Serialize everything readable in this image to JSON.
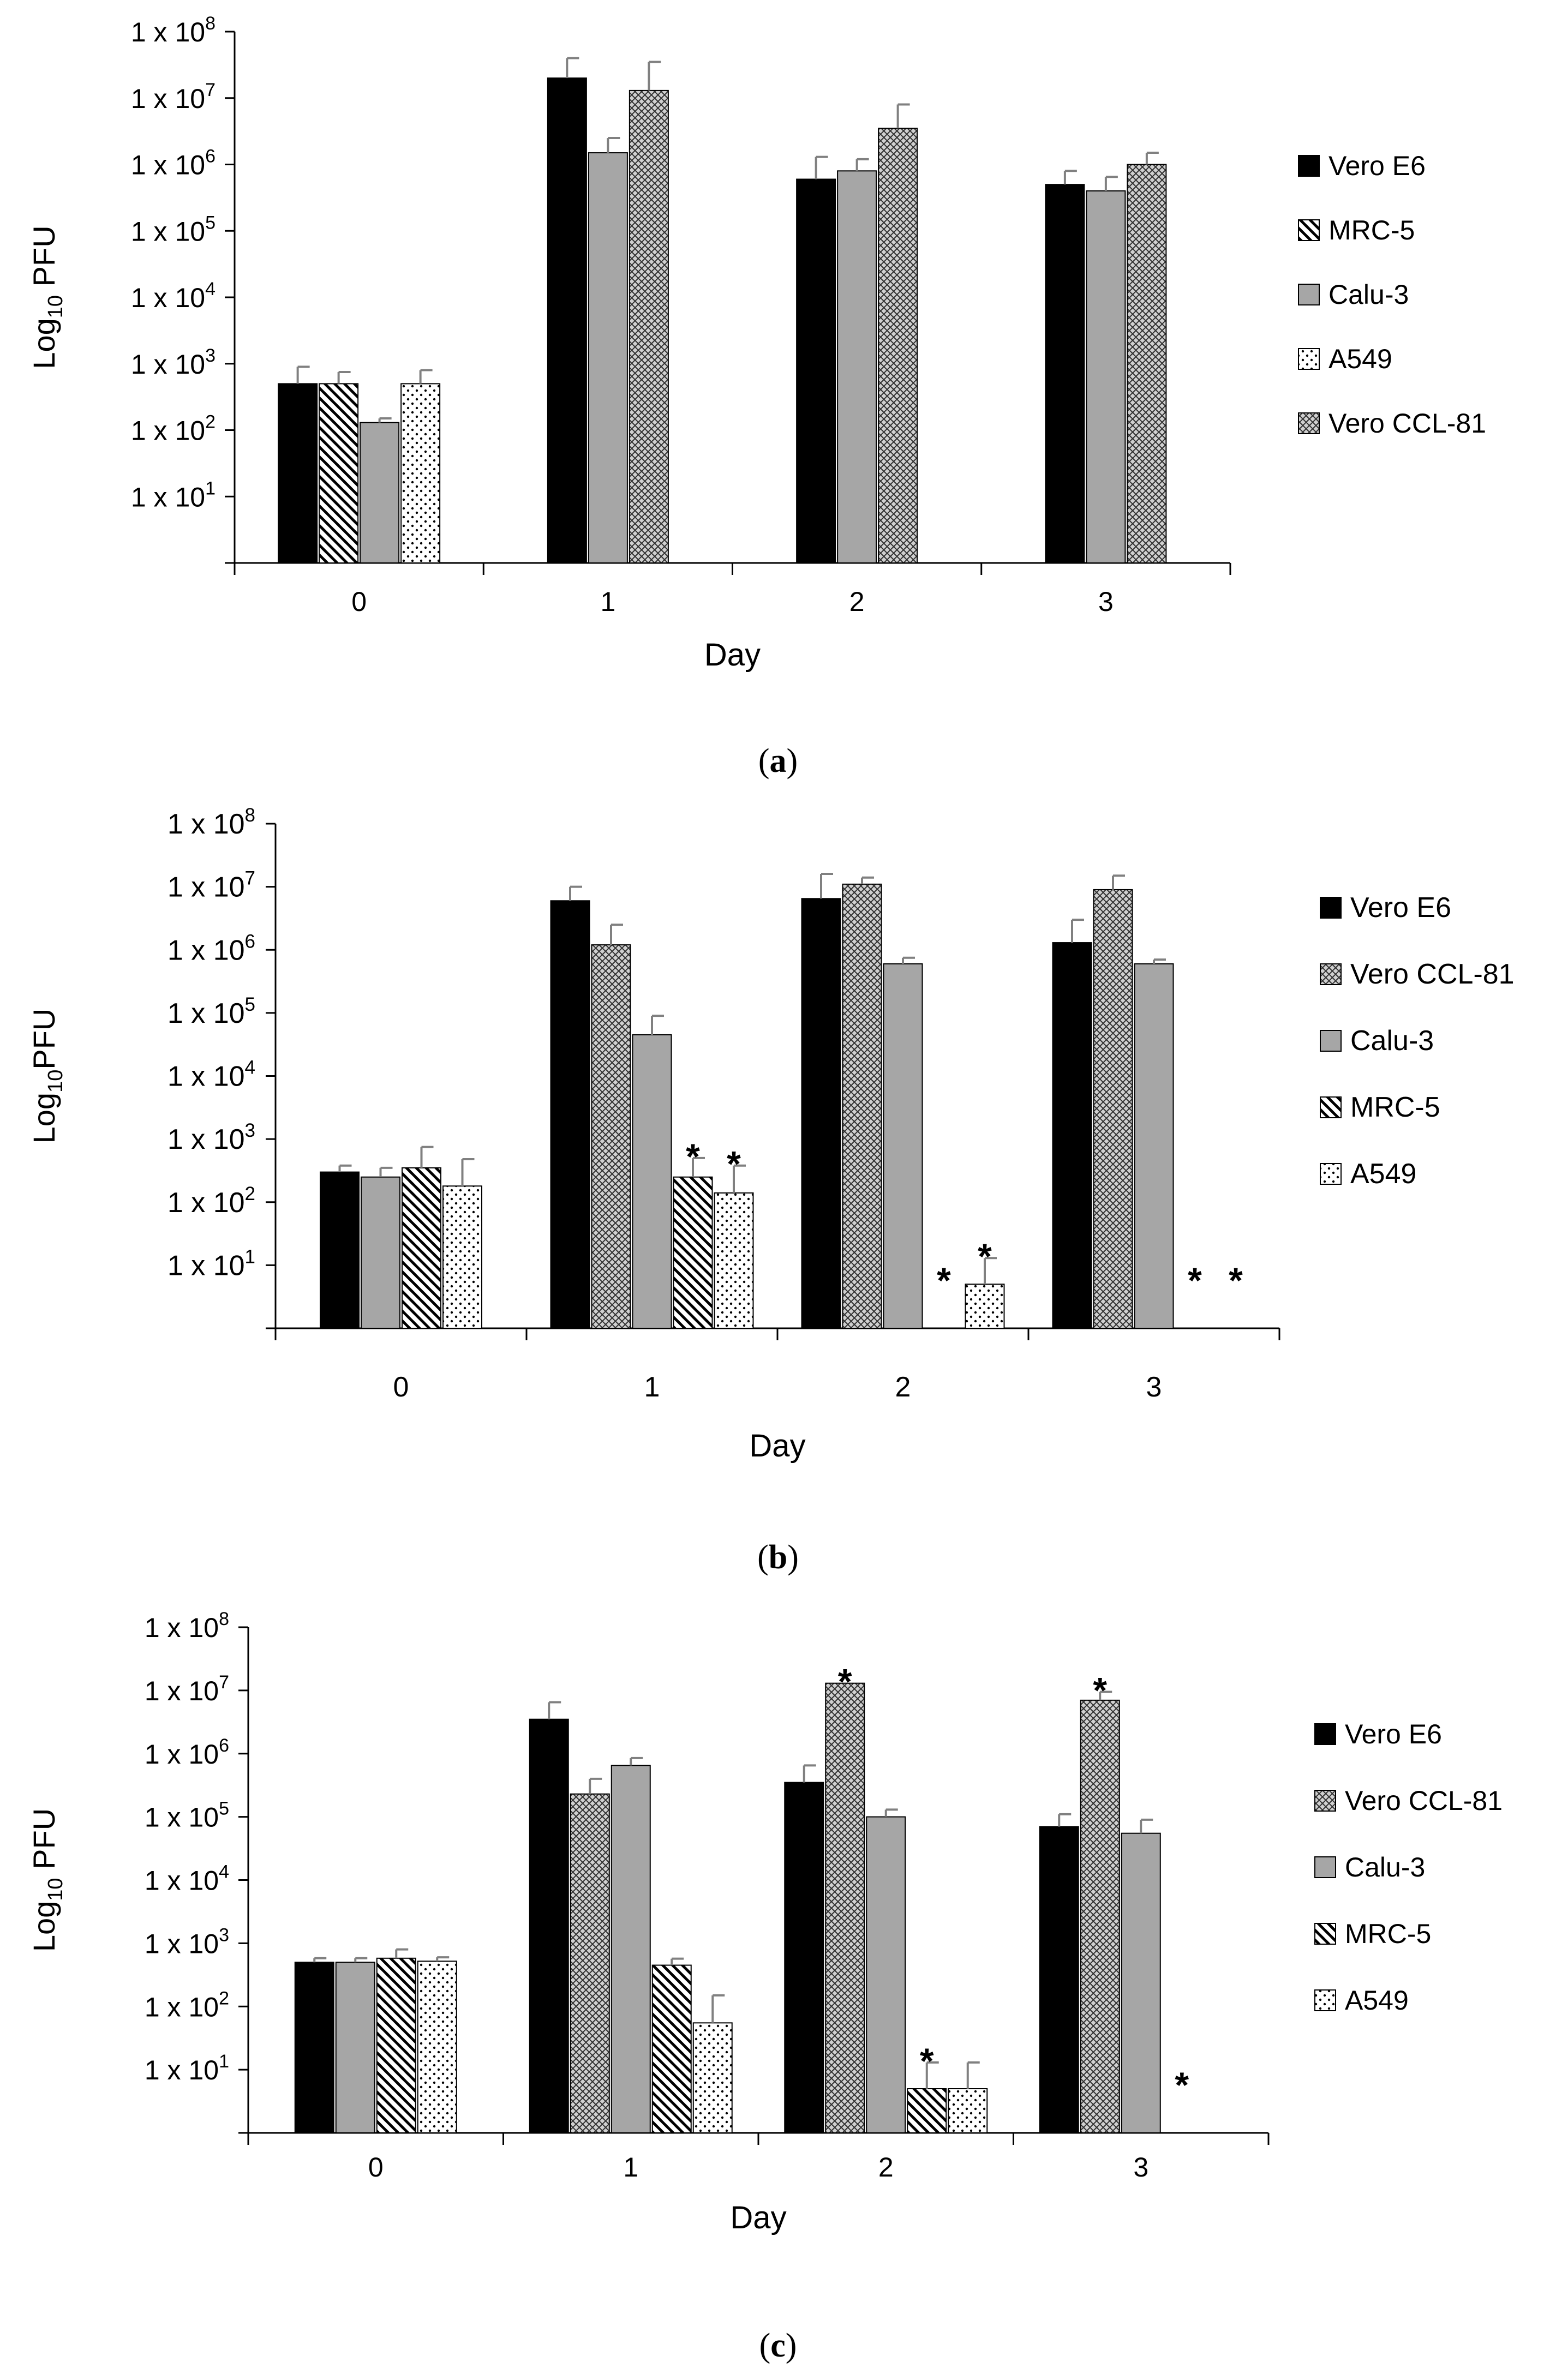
{
  "colors": {
    "vero_e6": "#000000",
    "calu3": "#a6a6a6",
    "axis": "#000000",
    "error_bar": "#808080"
  },
  "chart_data": [
    {
      "panel": "a",
      "caption_label": "a",
      "type": "bar",
      "yscale": "log",
      "ylim": [
        1,
        100000000
      ],
      "ylabel_main": "Log",
      "ylabel_sub": "10",
      "ylabel_tail": " PFU",
      "xlabel": "Day",
      "categories": [
        "0",
        "1",
        "2",
        "3"
      ],
      "yticks": [
        {
          "value": 10,
          "label_base": "1 x 10",
          "label_exp": "1"
        },
        {
          "value": 100,
          "label_base": "1 x 10",
          "label_exp": "2"
        },
        {
          "value": 1000,
          "label_base": "1 x 10",
          "label_exp": "3"
        },
        {
          "value": 10000,
          "label_base": "1 x 10",
          "label_exp": "4"
        },
        {
          "value": 100000,
          "label_base": "1 x 10",
          "label_exp": "5"
        },
        {
          "value": 1000000,
          "label_base": "1 x 10",
          "label_exp": "6"
        },
        {
          "value": 10000000,
          "label_base": "1 x 10",
          "label_exp": "7"
        },
        {
          "value": 100000000,
          "label_base": "1 x 10",
          "label_exp": "8"
        }
      ],
      "series": [
        {
          "name": "Vero E6",
          "pattern": "solid",
          "values": [
            500,
            20000000,
            600000,
            500000
          ],
          "errors": [
            900,
            40000000,
            1300000,
            800000
          ],
          "stars": [
            false,
            false,
            false,
            false
          ]
        },
        {
          "name": "MRC-5",
          "pattern": "diagonal",
          "values": [
            500,
            null,
            null,
            null
          ],
          "errors": [
            750,
            null,
            null,
            null
          ],
          "stars": [
            false,
            false,
            false,
            false
          ]
        },
        {
          "name": "Calu-3",
          "pattern": "gray",
          "values": [
            130,
            1500000,
            800000,
            400000
          ],
          "errors": [
            150,
            2500000,
            1200000,
            650000
          ],
          "stars": [
            false,
            false,
            false,
            false
          ]
        },
        {
          "name": "A549",
          "pattern": "dots",
          "values": [
            500,
            null,
            null,
            null
          ],
          "errors": [
            800,
            null,
            null,
            null
          ],
          "stars": [
            false,
            false,
            false,
            false
          ]
        },
        {
          "name": "Vero CCL-81",
          "pattern": "checker",
          "values": [
            null,
            13000000,
            3500000,
            1000000
          ],
          "errors": [
            null,
            35000000,
            8000000,
            1500000
          ],
          "stars": [
            false,
            false,
            false,
            false
          ]
        }
      ],
      "groups": [
        [
          "Vero E6",
          "MRC-5",
          "Calu-3",
          "A549"
        ],
        [
          "Vero E6",
          "Calu-3",
          "Vero CCL-81"
        ],
        [
          "Vero E6",
          "Calu-3",
          "Vero CCL-81"
        ],
        [
          "Vero E6",
          "Calu-3",
          "Vero CCL-81"
        ]
      ],
      "legend": [
        "Vero E6",
        "MRC-5",
        "Calu-3",
        "A549",
        "Vero CCL-81"
      ]
    },
    {
      "panel": "b",
      "caption_label": "b",
      "type": "bar",
      "yscale": "log",
      "ylim": [
        1,
        100000000
      ],
      "ylabel_main": "Log",
      "ylabel_sub": "10",
      "ylabel_tail": "PFU",
      "xlabel": "Day",
      "categories": [
        "0",
        "1",
        "2",
        "3"
      ],
      "yticks": [
        {
          "value": 10,
          "label_base": "1 x 10",
          "label_exp": "1"
        },
        {
          "value": 100,
          "label_base": "1 x 10",
          "label_exp": "2"
        },
        {
          "value": 1000,
          "label_base": "1 x 10",
          "label_exp": "3"
        },
        {
          "value": 10000,
          "label_base": "1 x 10",
          "label_exp": "4"
        },
        {
          "value": 100000,
          "label_base": "1 x 10",
          "label_exp": "5"
        },
        {
          "value": 1000000,
          "label_base": "1 x 10",
          "label_exp": "6"
        },
        {
          "value": 10000000,
          "label_base": "1 x 10",
          "label_exp": "7"
        },
        {
          "value": 100000000,
          "label_base": "1 x 10",
          "label_exp": "8"
        }
      ],
      "series": [
        {
          "name": "Vero E6",
          "pattern": "solid",
          "values": [
            300,
            6000000,
            6500000,
            1300000
          ],
          "errors": [
            380,
            10000000,
            16000000,
            3000000
          ],
          "stars": [
            false,
            false,
            false,
            false
          ]
        },
        {
          "name": "Vero CCL-81",
          "pattern": "checker",
          "values": [
            null,
            1200000,
            11000000,
            9000000
          ],
          "errors": [
            null,
            2500000,
            14000000,
            15000000
          ],
          "stars": [
            false,
            false,
            false,
            false
          ]
        },
        {
          "name": "Calu-3",
          "pattern": "gray",
          "values": [
            250,
            45000,
            600000,
            600000
          ],
          "errors": [
            350,
            90000,
            750000,
            700000
          ],
          "stars": [
            false,
            false,
            false,
            false
          ]
        },
        {
          "name": "MRC-5",
          "pattern": "diagonal",
          "values": [
            350,
            250,
            null,
            null
          ],
          "errors": [
            750,
            500,
            null,
            null
          ],
          "stars": [
            false,
            true,
            true,
            true
          ]
        },
        {
          "name": "A549",
          "pattern": "dots",
          "values": [
            180,
            140,
            5,
            null
          ],
          "errors": [
            480,
            380,
            13,
            null
          ],
          "stars": [
            false,
            true,
            true,
            true
          ]
        }
      ],
      "groups": [
        [
          "Vero E6",
          "Calu-3",
          "MRC-5",
          "A549"
        ],
        [
          "Vero E6",
          "Vero CCL-81",
          "Calu-3",
          "MRC-5",
          "A549"
        ],
        [
          "Vero E6",
          "Vero CCL-81",
          "Calu-3",
          "MRC-5",
          "A549"
        ],
        [
          "Vero E6",
          "Vero CCL-81",
          "Calu-3",
          "MRC-5",
          "A549"
        ]
      ],
      "legend": [
        "Vero E6",
        "Vero CCL-81",
        "Calu-3",
        "MRC-5",
        "A549"
      ]
    },
    {
      "panel": "c",
      "caption_label": "c",
      "type": "bar",
      "yscale": "log",
      "ylim": [
        1,
        100000000
      ],
      "ylabel_main": "Log",
      "ylabel_sub": "10",
      "ylabel_tail": " PFU",
      "xlabel": "Day",
      "categories": [
        "0",
        "1",
        "2",
        "3"
      ],
      "yticks": [
        {
          "value": 10,
          "label_base": "1 x 10",
          "label_exp": "1"
        },
        {
          "value": 100,
          "label_base": "1 x 10",
          "label_exp": "2"
        },
        {
          "value": 1000,
          "label_base": "1 x 10",
          "label_exp": "3"
        },
        {
          "value": 10000,
          "label_base": "1 x 10",
          "label_exp": "4"
        },
        {
          "value": 100000,
          "label_base": "1 x 10",
          "label_exp": "5"
        },
        {
          "value": 1000000,
          "label_base": "1 x 10",
          "label_exp": "6"
        },
        {
          "value": 10000000,
          "label_base": "1 x 10",
          "label_exp": "7"
        },
        {
          "value": 100000000,
          "label_base": "1 x 10",
          "label_exp": "8"
        }
      ],
      "series": [
        {
          "name": "Vero E6",
          "pattern": "solid",
          "values": [
            500,
            3500000,
            350000,
            70000
          ],
          "errors": [
            580,
            6500000,
            650000,
            110000
          ],
          "stars": [
            false,
            false,
            false,
            false
          ]
        },
        {
          "name": "Vero CCL-81",
          "pattern": "checker",
          "values": [
            null,
            230000,
            13000000,
            7000000
          ],
          "errors": [
            null,
            400000,
            13000000,
            9500000
          ],
          "stars": [
            false,
            false,
            true,
            true
          ]
        },
        {
          "name": "Calu-3",
          "pattern": "gray",
          "values": [
            500,
            650000,
            100000,
            55000
          ],
          "errors": [
            580,
            850000,
            130000,
            90000
          ],
          "stars": [
            false,
            false,
            false,
            false
          ]
        },
        {
          "name": "MRC-5",
          "pattern": "diagonal",
          "values": [
            580,
            450,
            5,
            null
          ],
          "errors": [
            800,
            570,
            13,
            null
          ],
          "stars": [
            false,
            false,
            true,
            true
          ]
        },
        {
          "name": "A549",
          "pattern": "dots",
          "values": [
            520,
            55,
            5,
            null
          ],
          "errors": [
            600,
            150,
            13,
            null
          ],
          "stars": [
            false,
            false,
            false,
            false
          ]
        }
      ],
      "groups": [
        [
          "Vero E6",
          "Calu-3",
          "MRC-5",
          "A549"
        ],
        [
          "Vero E6",
          "Vero CCL-81",
          "Calu-3",
          "MRC-5",
          "A549"
        ],
        [
          "Vero E6",
          "Vero CCL-81",
          "Calu-3",
          "MRC-5",
          "A549"
        ],
        [
          "Vero E6",
          "Vero CCL-81",
          "Calu-3",
          "MRC-5",
          "A549"
        ]
      ],
      "legend": [
        "Vero E6",
        "Vero CCL-81",
        "Calu-3",
        "MRC-5",
        "A549"
      ]
    }
  ]
}
